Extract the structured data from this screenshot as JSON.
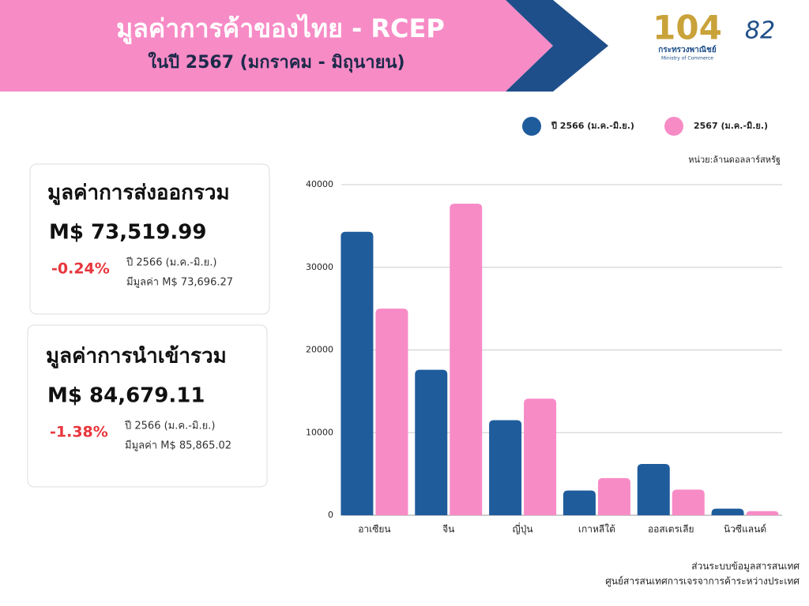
{
  "header": {
    "title": "มูลค่าการค้าของไทย - RCEP",
    "subtitle": "ในปี 2567 (มกราคม - มิถุนายน)"
  },
  "logos": {
    "number": "104",
    "ministry_th": "กระทรวงพาณิชย์",
    "ministry_en": "Ministry of Commerce",
    "anniversary": "82"
  },
  "cards": [
    {
      "title": "มูลค่าการส่งออกรวม",
      "amount": "M$ 73,519.99",
      "change": "-0.24%",
      "note_line1": "ปี 2566 (ม.ค.-มิ.ย.)",
      "note_line2": "มีมูลค่า M$ 73,696.27"
    },
    {
      "title": "มูลค่าการนำเข้ารวม",
      "amount": "M$ 84,679.11",
      "change": "-1.38%",
      "note_line1": "ปี 2566 (ม.ค.-มิ.ย.)",
      "note_line2": "มีมูลค่า M$ 85,865.02"
    }
  ],
  "chart_data": {
    "type": "bar",
    "unit_label": "หน่วย:ล้านดอลลาร์สหรัฐ",
    "categories": [
      "อาเซียน",
      "จีน",
      "ญี่ปุ่น",
      "เกาหลีใต้",
      "ออสเตรเลีย",
      "นิวซีแลนด์"
    ],
    "series": [
      {
        "name": "ปี 2566 (ม.ค.-มิ.ย.)",
        "color": "#1f5c9c",
        "values": [
          34300,
          17600,
          11500,
          3000,
          6200,
          800
        ]
      },
      {
        "name": "2567 (ม.ค.-มิ.ย.)",
        "color": "#f78bc6",
        "values": [
          25000,
          37700,
          14100,
          4500,
          3100,
          500
        ]
      }
    ],
    "ylim": [
      0,
      40000
    ],
    "yticks": [
      0,
      10000,
      20000,
      30000,
      40000
    ],
    "grid": true
  },
  "footer": {
    "line1": "ส่วนระบบข้อมูลสารสนเทศ",
    "line2": "ศูนย์สารสนเทศการเจรจาการค้าระหว่างประเทศ"
  }
}
